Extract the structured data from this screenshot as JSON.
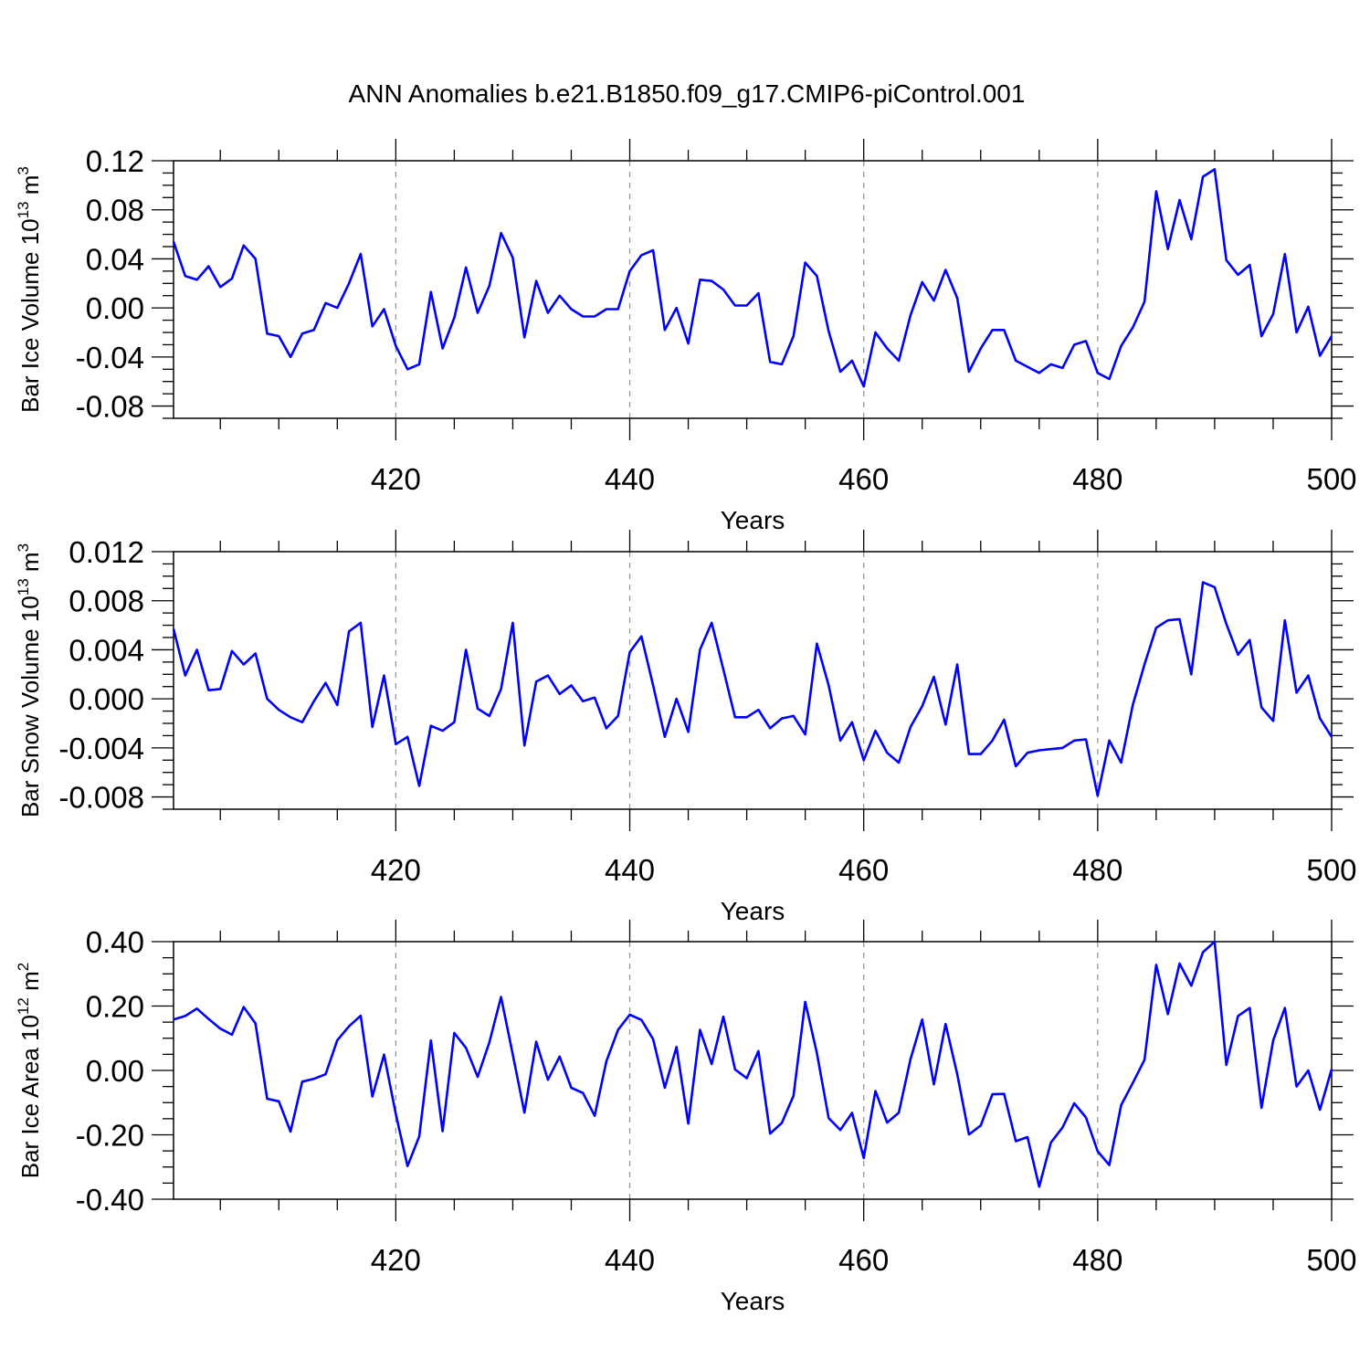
{
  "title": "ANN Anomalies b.e21.B1850.f09_g17.CMIP6-piControl.001",
  "colors": {
    "line": "#0000ff",
    "axis": "#000000",
    "grid": "#999999"
  },
  "chart_data": [
    {
      "type": "line",
      "ylabel": {
        "base": "Bar Ice Volume 10",
        "exp": "13",
        "unit": " m",
        "unit_exp": "3"
      },
      "xlabel": "Years",
      "xlim": [
        401,
        500
      ],
      "ylim": [
        -0.09,
        0.12
      ],
      "xticks": [
        420,
        440,
        460,
        480,
        500
      ],
      "xtick_labels": [
        "420",
        "440",
        "460",
        "480",
        "500"
      ],
      "yticks": [
        -0.08,
        -0.04,
        0.0,
        0.04,
        0.08,
        0.12
      ],
      "ytick_labels": [
        "-0.08",
        "-0.04",
        "0.00",
        "0.04",
        "0.08",
        "0.12"
      ],
      "grid": "vertical dashed at major x ticks",
      "x_start": 401,
      "values": [
        0.054,
        0.026,
        0.023,
        0.034,
        0.017,
        0.024,
        0.051,
        0.04,
        -0.021,
        -0.023,
        -0.04,
        -0.021,
        -0.018,
        0.004,
        0.0,
        0.02,
        0.044,
        -0.015,
        -0.001,
        -0.031,
        -0.05,
        -0.046,
        0.013,
        -0.033,
        -0.008,
        0.033,
        -0.004,
        0.018,
        0.061,
        0.041,
        -0.024,
        0.022,
        -0.004,
        0.01,
        -0.001,
        -0.007,
        -0.007,
        -0.001,
        -0.001,
        0.03,
        0.043,
        0.047,
        -0.018,
        0.0,
        -0.029,
        0.023,
        0.022,
        0.015,
        0.002,
        0.002,
        0.012,
        -0.044,
        -0.046,
        -0.023,
        0.037,
        0.026,
        -0.019,
        -0.052,
        -0.043,
        -0.064,
        -0.02,
        -0.033,
        -0.043,
        -0.006,
        0.021,
        0.006,
        0.031,
        0.008,
        -0.052,
        -0.033,
        -0.018,
        -0.018,
        -0.043,
        -0.048,
        -0.053,
        -0.046,
        -0.049,
        -0.03,
        -0.027,
        -0.053,
        -0.058,
        -0.031,
        -0.016,
        0.005,
        0.095,
        0.048,
        0.088,
        0.056,
        0.107,
        0.113,
        0.039,
        0.027,
        0.035,
        -0.023,
        -0.005,
        0.044,
        -0.02,
        0.001,
        -0.039,
        -0.023
      ]
    },
    {
      "type": "line",
      "ylabel": {
        "base": "Bar Snow Volume 10",
        "exp": "13",
        "unit": " m",
        "unit_exp": "3"
      },
      "xlabel": "Years",
      "xlim": [
        401,
        500
      ],
      "ylim": [
        -0.009,
        0.012
      ],
      "xticks": [
        420,
        440,
        460,
        480,
        500
      ],
      "xtick_labels": [
        "420",
        "440",
        "460",
        "480",
        "500"
      ],
      "yticks": [
        -0.008,
        -0.004,
        0.0,
        0.004,
        0.008,
        0.012
      ],
      "ytick_labels": [
        "-0.008",
        "-0.004",
        "0.000",
        "0.004",
        "0.008",
        "0.012"
      ],
      "grid": "vertical dashed at major x ticks",
      "x_start": 401,
      "values": [
        0.0057,
        0.0019,
        0.004,
        0.0007,
        0.0008,
        0.0039,
        0.0028,
        0.0037,
        0.0,
        -0.0009,
        -0.0015,
        -0.0019,
        -0.0002,
        0.0013,
        -0.0005,
        0.0055,
        0.0062,
        -0.0023,
        0.0019,
        -0.0037,
        -0.0031,
        -0.0071,
        -0.0022,
        -0.0026,
        -0.0019,
        0.004,
        -0.0008,
        -0.0014,
        0.0008,
        0.0062,
        -0.0038,
        0.0014,
        0.0019,
        0.0004,
        0.0011,
        -0.0002,
        0.0001,
        -0.0024,
        -0.0014,
        0.0038,
        0.0051,
        0.0011,
        -0.0031,
        0.0,
        -0.0027,
        0.004,
        0.0062,
        0.0024,
        -0.0015,
        -0.0015,
        -0.0009,
        -0.0024,
        -0.0016,
        -0.0014,
        -0.0029,
        0.0045,
        0.0011,
        -0.0034,
        -0.0019,
        -0.005,
        -0.0026,
        -0.0044,
        -0.0052,
        -0.0023,
        -0.0006,
        0.0018,
        -0.0021,
        0.0028,
        -0.0045,
        -0.0045,
        -0.0034,
        -0.0017,
        -0.0055,
        -0.0044,
        -0.0042,
        -0.0041,
        -0.004,
        -0.0034,
        -0.0033,
        -0.0079,
        -0.0034,
        -0.0052,
        -0.0005,
        0.0028,
        0.0058,
        0.0064,
        0.0065,
        0.002,
        0.0095,
        0.0091,
        0.0061,
        0.0036,
        0.0048,
        -0.0007,
        -0.0018,
        0.0064,
        0.0005,
        0.0019,
        -0.0016,
        -0.0031
      ]
    },
    {
      "type": "line",
      "ylabel": {
        "base": "Bar Ice Area 10",
        "exp": "12",
        "unit": " m",
        "unit_exp": "2"
      },
      "xlabel": "Years",
      "xlim": [
        401,
        500
      ],
      "ylim": [
        -0.4,
        0.4
      ],
      "xticks": [
        420,
        440,
        460,
        480,
        500
      ],
      "xtick_labels": [
        "420",
        "440",
        "460",
        "480",
        "500"
      ],
      "yticks": [
        -0.4,
        -0.2,
        0.0,
        0.2,
        0.4
      ],
      "ytick_labels": [
        "-0.40",
        "-0.20",
        "0.00",
        "0.20",
        "0.40"
      ],
      "grid": "vertical dashed at major x ticks",
      "x_start": 401,
      "values": [
        0.158,
        0.169,
        0.192,
        0.16,
        0.13,
        0.111,
        0.197,
        0.146,
        -0.088,
        -0.096,
        -0.19,
        -0.035,
        -0.026,
        -0.012,
        0.094,
        0.137,
        0.17,
        -0.081,
        0.049,
        -0.136,
        -0.297,
        -0.205,
        0.093,
        -0.189,
        0.116,
        0.07,
        -0.02,
        0.087,
        0.228,
        0.05,
        -0.131,
        0.089,
        -0.029,
        0.043,
        -0.054,
        -0.07,
        -0.141,
        0.028,
        0.126,
        0.173,
        0.157,
        0.097,
        -0.054,
        0.073,
        -0.165,
        0.126,
        0.02,
        0.167,
        0.003,
        -0.024,
        0.06,
        -0.196,
        -0.163,
        -0.079,
        0.213,
        0.054,
        -0.148,
        -0.185,
        -0.132,
        -0.272,
        -0.064,
        -0.162,
        -0.131,
        0.035,
        0.158,
        -0.043,
        0.144,
        -0.012,
        -0.199,
        -0.171,
        -0.074,
        -0.073,
        -0.22,
        -0.207,
        -0.361,
        -0.224,
        -0.177,
        -0.102,
        -0.146,
        -0.251,
        -0.294,
        -0.108,
        -0.039,
        0.033,
        0.328,
        0.175,
        0.332,
        0.263,
        0.367,
        0.4,
        0.017,
        0.169,
        0.194,
        -0.116,
        0.093,
        0.194,
        -0.05,
        0.0,
        -0.122,
        0.004
      ]
    }
  ]
}
